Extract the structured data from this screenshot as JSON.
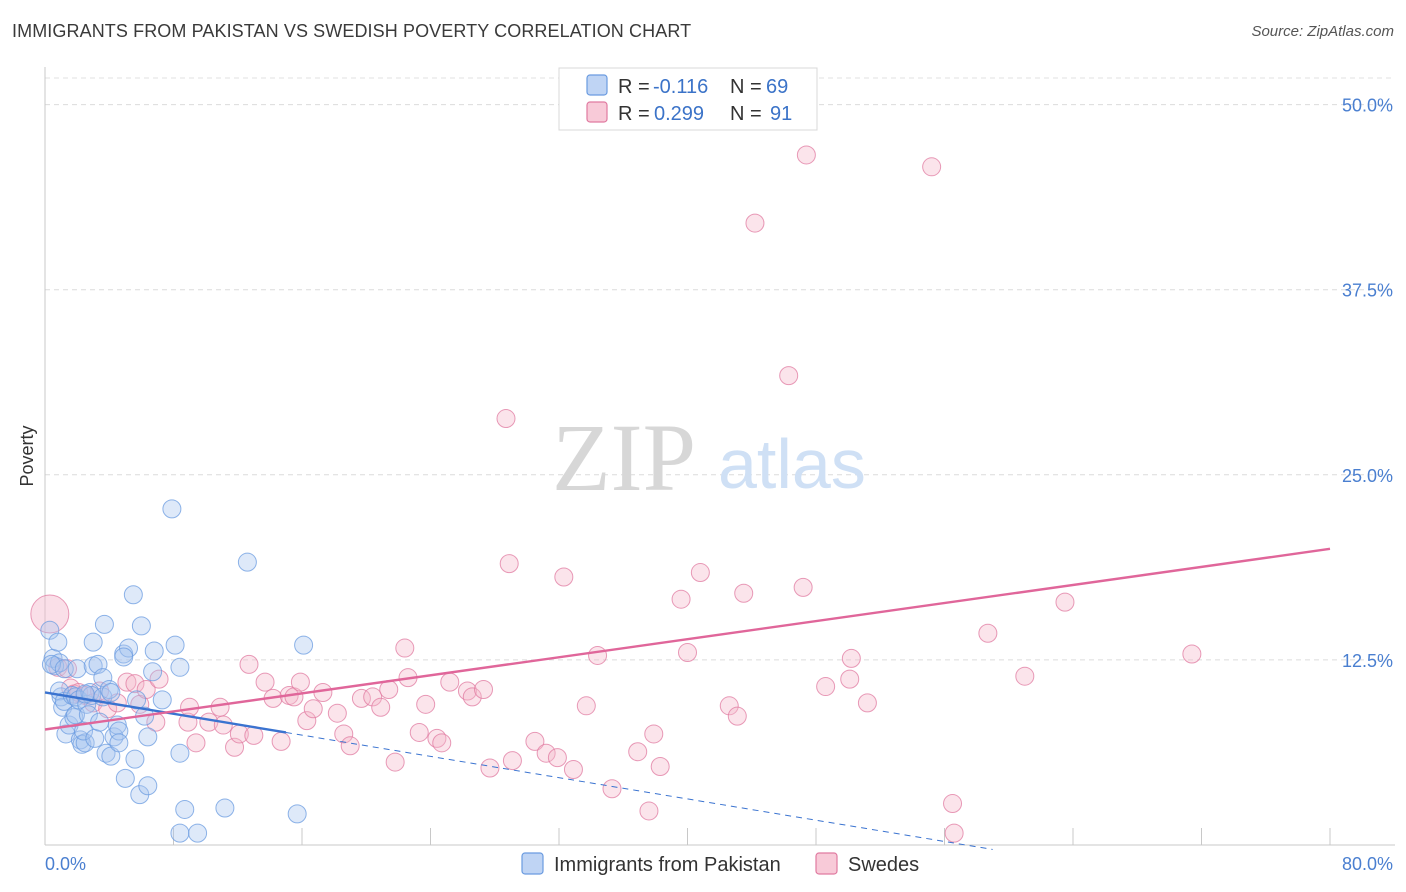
{
  "header": {
    "title": "IMMIGRANTS FROM PAKISTAN VS SWEDISH POVERTY CORRELATION CHART",
    "source": "Source: ZipAtlas.com"
  },
  "watermark": {
    "zip": "ZIP",
    "atlas": "atlas"
  },
  "legend": {
    "rows": [
      {
        "r_label": "R =",
        "r_value": "-0.116",
        "n_label": "N =",
        "n_value": "69",
        "color": "#a9c6f0"
      },
      {
        "r_label": "R =",
        "r_value": "0.299",
        "n_label": "N =",
        "n_value": "91",
        "color": "#f5b8cb"
      }
    ]
  },
  "bottom_legend": [
    {
      "label": "Immigrants from Pakistan",
      "color": "#a9c6f0"
    },
    {
      "label": "Swedes",
      "color": "#f5b8cb"
    }
  ],
  "chart_data": {
    "type": "scatter",
    "ylabel": "Poverty",
    "xlabel": "",
    "xlim": [
      0,
      80
    ],
    "ylim": [
      0,
      52
    ],
    "x_tick_labels": [
      "0.0%",
      "80.0%"
    ],
    "y_ticks": [
      12.5,
      25.0,
      37.5,
      50.0
    ],
    "y_tick_labels": [
      "12.5%",
      "25.0%",
      "37.5%",
      "50.0%"
    ],
    "grid": "horizontal dashed",
    "legend_position": "top-center",
    "series": [
      {
        "name": "Immigrants from Pakistan",
        "color": "#6a9be0",
        "fill": "#a9c6f0",
        "trend": {
          "x": [
            0,
            15
          ],
          "y": [
            10.3,
            7.6
          ],
          "style": "solid"
        },
        "trend_ext": {
          "x": [
            15,
            59
          ],
          "y": [
            7.6,
            -0.3
          ],
          "style": "dashed"
        },
        "points": [
          [
            0.3,
            14.5
          ],
          [
            0.5,
            12.6
          ],
          [
            0.6,
            12.1
          ],
          [
            0.8,
            13.7
          ],
          [
            0.9,
            12.3
          ],
          [
            0.4,
            12.2
          ],
          [
            1.0,
            10.0
          ],
          [
            0.9,
            10.4
          ],
          [
            1.1,
            9.3
          ],
          [
            1.3,
            7.5
          ],
          [
            1.2,
            9.7
          ],
          [
            1.5,
            8.1
          ],
          [
            1.2,
            11.9
          ],
          [
            1.7,
            10.1
          ],
          [
            1.8,
            8.6
          ],
          [
            1.9,
            8.8
          ],
          [
            1.9,
            10.0
          ],
          [
            2.0,
            11.9
          ],
          [
            2.1,
            9.8
          ],
          [
            2.2,
            7.1
          ],
          [
            2.3,
            6.8
          ],
          [
            2.5,
            6.9
          ],
          [
            2.4,
            7.7
          ],
          [
            2.6,
            9.5
          ],
          [
            2.7,
            8.8
          ],
          [
            2.8,
            10.3
          ],
          [
            2.9,
            10.1
          ],
          [
            2.5,
            10.2
          ],
          [
            3.0,
            12.1
          ],
          [
            3.0,
            13.7
          ],
          [
            3.1,
            7.2
          ],
          [
            3.3,
            12.2
          ],
          [
            3.4,
            8.3
          ],
          [
            3.6,
            10.0
          ],
          [
            3.6,
            11.3
          ],
          [
            3.7,
            14.9
          ],
          [
            3.8,
            6.2
          ],
          [
            4.0,
            10.5
          ],
          [
            4.1,
            10.3
          ],
          [
            4.3,
            7.3
          ],
          [
            4.1,
            6.0
          ],
          [
            4.5,
            8.1
          ],
          [
            4.6,
            7.7
          ],
          [
            4.9,
            12.9
          ],
          [
            5.2,
            13.3
          ],
          [
            5.5,
            16.9
          ],
          [
            4.9,
            12.7
          ],
          [
            5.0,
            4.5
          ],
          [
            5.6,
            5.8
          ],
          [
            5.9,
            3.4
          ],
          [
            4.6,
            6.9
          ],
          [
            6.0,
            14.8
          ],
          [
            6.4,
            4.0
          ],
          [
            6.2,
            8.7
          ],
          [
            6.7,
            11.7
          ],
          [
            6.8,
            13.1
          ],
          [
            5.7,
            9.8
          ],
          [
            7.3,
            9.8
          ],
          [
            6.4,
            7.3
          ],
          [
            7.9,
            22.7
          ],
          [
            8.1,
            13.5
          ],
          [
            8.4,
            12.0
          ],
          [
            8.4,
            6.2
          ],
          [
            8.7,
            2.4
          ],
          [
            8.4,
            0.8
          ],
          [
            9.5,
            0.8
          ],
          [
            11.2,
            2.5
          ],
          [
            12.6,
            19.1
          ],
          [
            15.7,
            2.1
          ],
          [
            16.1,
            13.5
          ]
        ]
      },
      {
        "name": "Swedes",
        "color": "#e07aa0",
        "fill": "#f5b8cb",
        "trend": {
          "x": [
            0,
            80
          ],
          "y": [
            7.8,
            20.0
          ],
          "style": "solid"
        },
        "points": [
          [
            0.3,
            15.6
          ],
          [
            0.8,
            12.0
          ],
          [
            1.4,
            11.9
          ],
          [
            1.6,
            10.6
          ],
          [
            1.8,
            10.2
          ],
          [
            2.1,
            10.3
          ],
          [
            2.5,
            10.1
          ],
          [
            3.0,
            9.6
          ],
          [
            3.4,
            10.4
          ],
          [
            3.9,
            9.2
          ],
          [
            4.5,
            9.6
          ],
          [
            5.1,
            11.0
          ],
          [
            5.6,
            10.9
          ],
          [
            5.9,
            9.5
          ],
          [
            6.3,
            10.5
          ],
          [
            6.9,
            8.3
          ],
          [
            7.1,
            11.2
          ],
          [
            8.9,
            8.3
          ],
          [
            9.0,
            9.3
          ],
          [
            9.4,
            6.9
          ],
          [
            10.2,
            8.3
          ],
          [
            10.9,
            9.3
          ],
          [
            11.1,
            8.1
          ],
          [
            11.8,
            6.6
          ],
          [
            12.1,
            7.5
          ],
          [
            12.7,
            12.2
          ],
          [
            13.0,
            7.4
          ],
          [
            13.7,
            11.0
          ],
          [
            14.2,
            9.9
          ],
          [
            14.7,
            7.0
          ],
          [
            15.2,
            10.1
          ],
          [
            15.5,
            10.0
          ],
          [
            15.9,
            11.0
          ],
          [
            16.3,
            8.4
          ],
          [
            16.7,
            9.2
          ],
          [
            17.3,
            10.3
          ],
          [
            18.2,
            8.9
          ],
          [
            18.6,
            7.5
          ],
          [
            19.0,
            6.7
          ],
          [
            19.7,
            9.9
          ],
          [
            20.4,
            10.0
          ],
          [
            20.9,
            9.3
          ],
          [
            21.4,
            10.5
          ],
          [
            21.8,
            5.6
          ],
          [
            22.4,
            13.3
          ],
          [
            22.6,
            11.3
          ],
          [
            23.3,
            7.6
          ],
          [
            23.7,
            9.5
          ],
          [
            24.4,
            7.2
          ],
          [
            24.7,
            6.9
          ],
          [
            25.2,
            11.0
          ],
          [
            26.3,
            10.4
          ],
          [
            26.6,
            10.0
          ],
          [
            27.3,
            10.5
          ],
          [
            27.7,
            5.2
          ],
          [
            28.7,
            28.8
          ],
          [
            28.9,
            19.0
          ],
          [
            29.1,
            5.7
          ],
          [
            30.5,
            7.0
          ],
          [
            31.2,
            6.2
          ],
          [
            31.9,
            5.9
          ],
          [
            32.3,
            18.1
          ],
          [
            32.9,
            5.1
          ],
          [
            33.7,
            9.4
          ],
          [
            34.4,
            12.8
          ],
          [
            35.3,
            3.8
          ],
          [
            36.9,
            6.3
          ],
          [
            37.6,
            2.3
          ],
          [
            37.9,
            7.5
          ],
          [
            38.3,
            5.3
          ],
          [
            39.6,
            16.6
          ],
          [
            40.0,
            13.0
          ],
          [
            40.8,
            18.4
          ],
          [
            42.6,
            9.4
          ],
          [
            43.5,
            17.0
          ],
          [
            43.1,
            8.7
          ],
          [
            44.2,
            42.0
          ],
          [
            46.3,
            31.7
          ],
          [
            47.2,
            17.4
          ],
          [
            47.4,
            46.6
          ],
          [
            48.6,
            10.7
          ],
          [
            50.2,
            12.6
          ],
          [
            50.1,
            11.2
          ],
          [
            51.2,
            9.6
          ],
          [
            55.2,
            45.8
          ],
          [
            56.5,
            2.8
          ],
          [
            56.6,
            0.8
          ],
          [
            58.7,
            14.3
          ],
          [
            61.0,
            11.4
          ],
          [
            63.5,
            16.4
          ],
          [
            71.4,
            12.9
          ]
        ]
      }
    ]
  }
}
